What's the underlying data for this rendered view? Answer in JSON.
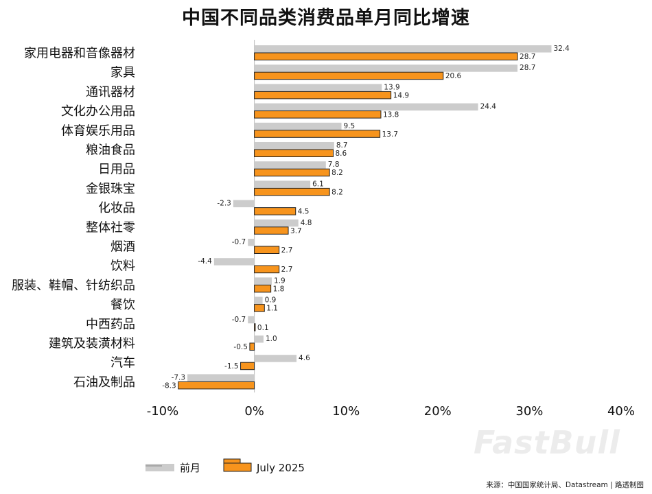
{
  "chart_data": {
    "type": "bar",
    "orientation": "horizontal",
    "title": "中国不同品类消费品单月同比增速",
    "categories": [
      "家用电器和音像器材",
      "家具",
      "通讯器材",
      "文化办公用品",
      "体育娱乐用品",
      "粮油食品",
      "日用品",
      "金银珠宝",
      "化妆品",
      "整体社零",
      "烟酒",
      "饮料",
      "服装、鞋帽、针纺织品",
      "餐饮",
      "中西药品",
      "建筑及装潢材料",
      "汽车",
      "石油及制品"
    ],
    "series": [
      {
        "name": "前月",
        "color": "#cccccc",
        "values": [
          32.4,
          28.7,
          13.9,
          24.4,
          9.5,
          8.7,
          7.8,
          6.1,
          -2.3,
          4.8,
          -0.7,
          -4.4,
          1.9,
          0.9,
          -0.7,
          1.0,
          4.6,
          -7.3
        ]
      },
      {
        "name": "July 2025",
        "color": "#f7941d",
        "values": [
          28.7,
          20.6,
          14.9,
          13.8,
          13.7,
          8.6,
          8.2,
          8.2,
          4.5,
          3.7,
          2.7,
          2.7,
          1.8,
          1.1,
          0.1,
          -0.5,
          -1.5,
          -8.3
        ]
      }
    ],
    "value_labels": [
      [
        "32.4",
        "28.7"
      ],
      [
        "28.7",
        "20.6"
      ],
      [
        "13.9",
        "14.9"
      ],
      [
        "24.4",
        "13.8"
      ],
      [
        "9.5",
        "13.7"
      ],
      [
        "8.7",
        "8.6"
      ],
      [
        "7.8",
        "8.2"
      ],
      [
        "6.1",
        "8.2"
      ],
      [
        "-2.3",
        "4.5"
      ],
      [
        "4.8",
        "3.7"
      ],
      [
        "-0.7",
        "2.7"
      ],
      [
        "-4.4",
        "2.7"
      ],
      [
        "1.9",
        "1.8"
      ],
      [
        "0.9",
        "1.1"
      ],
      [
        "-0.7",
        "0.1"
      ],
      [
        "1.0",
        "-0.5"
      ],
      [
        "4.6",
        "-1.5"
      ],
      [
        "-7.3",
        "-8.3"
      ]
    ],
    "xlim": [
      -10,
      40
    ],
    "xticks": [
      -10,
      0,
      10,
      20,
      30,
      40
    ],
    "xtick_labels": [
      "-10%",
      "0%",
      "10%",
      "20%",
      "30%",
      "40%"
    ],
    "xlabel": "",
    "ylabel": "",
    "grid": false,
    "legend_position": "bottom-left"
  },
  "source_text": "来源：中国国家统计局、Datastream | 路透制图",
  "watermark_text": "FastBull"
}
